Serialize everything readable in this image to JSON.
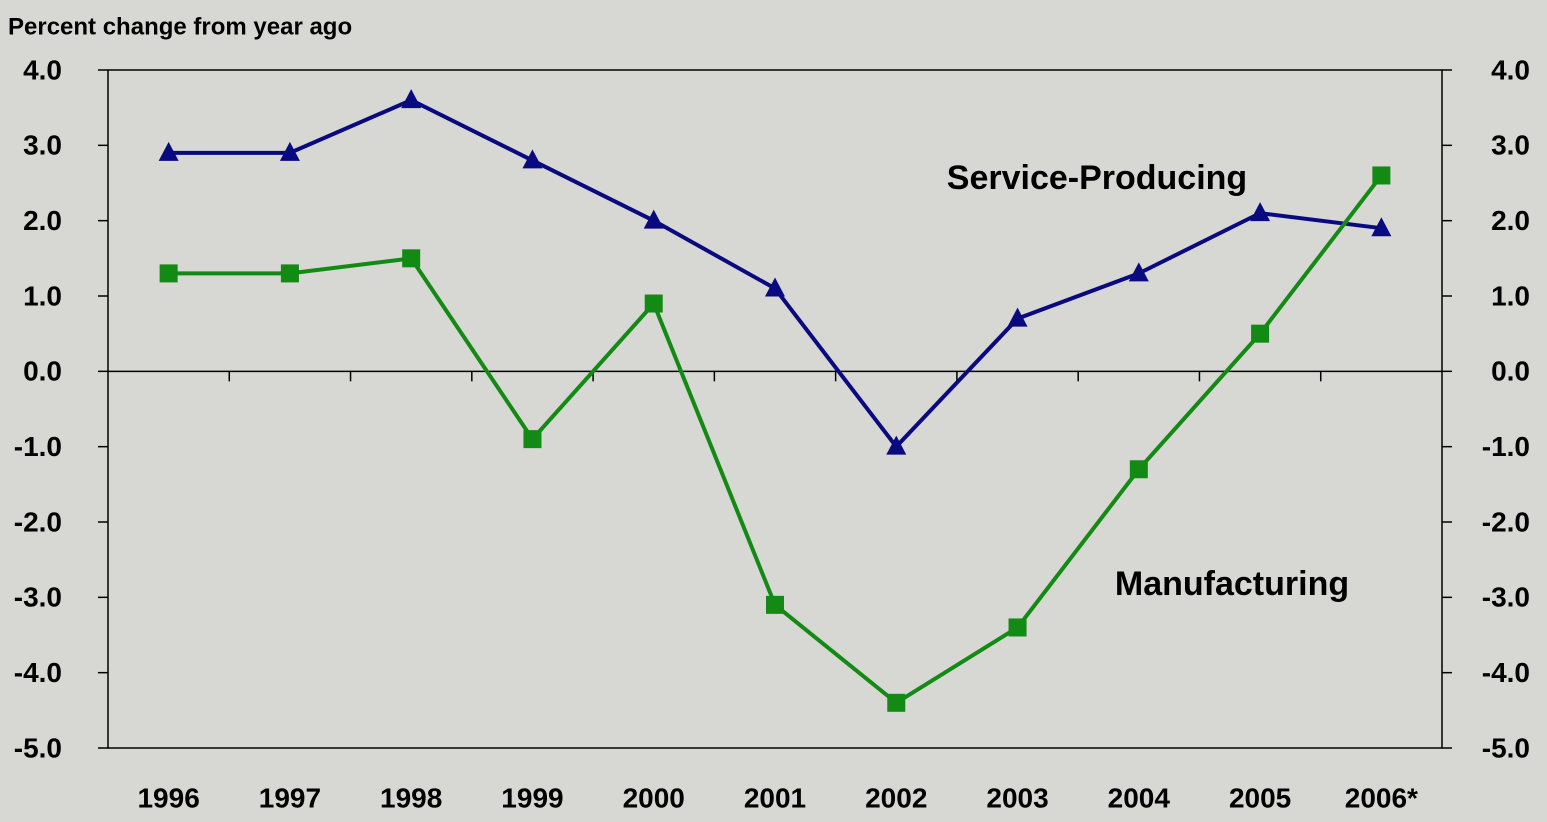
{
  "chart_data": {
    "type": "line",
    "y_axis_label": "Percent change from year ago",
    "categories": [
      "1996",
      "1997",
      "1998",
      "1999",
      "2000",
      "2001",
      "2002",
      "2003",
      "2004",
      "2005",
      "2006*"
    ],
    "series": [
      {
        "name": "Service-Producing",
        "color": "#0a0a80",
        "marker": "triangle",
        "values": [
          2.9,
          2.9,
          3.6,
          2.8,
          2.0,
          1.1,
          -1.0,
          0.7,
          1.3,
          2.1,
          1.9
        ]
      },
      {
        "name": "Manufacturing",
        "color": "#138a13",
        "marker": "square",
        "values": [
          1.3,
          1.3,
          1.5,
          -0.9,
          0.9,
          -3.1,
          -4.4,
          -3.4,
          -1.3,
          0.5,
          2.6
        ]
      }
    ],
    "ylim": [
      -5,
      4
    ],
    "yticks": [
      {
        "value": -5,
        "label": "-5.0"
      },
      {
        "value": -4,
        "label": "-4.0"
      },
      {
        "value": -3,
        "label": "-3.0"
      },
      {
        "value": -2,
        "label": "-2.0"
      },
      {
        "value": -1,
        "label": "-1.0"
      },
      {
        "value": 0,
        "label": "0.0"
      },
      {
        "value": 1,
        "label": "1.0"
      },
      {
        "value": 2,
        "label": "2.0"
      },
      {
        "value": 3,
        "label": "3.0"
      },
      {
        "value": 4,
        "label": "4.0"
      }
    ],
    "y2lim": [
      -5,
      4
    ],
    "y2ticks": [
      {
        "value": -5,
        "label": "-5.0"
      },
      {
        "value": -4,
        "label": "-4.0"
      },
      {
        "value": -3,
        "label": "-3.0"
      },
      {
        "value": -2,
        "label": "-2.0"
      },
      {
        "value": -1,
        "label": "-1.0"
      },
      {
        "value": 0,
        "label": "0.0"
      },
      {
        "value": 1,
        "label": "1.0"
      },
      {
        "value": 2,
        "label": "2.0"
      },
      {
        "value": 3,
        "label": "3.0"
      },
      {
        "value": 4,
        "label": "4.0"
      }
    ],
    "grid": false
  }
}
